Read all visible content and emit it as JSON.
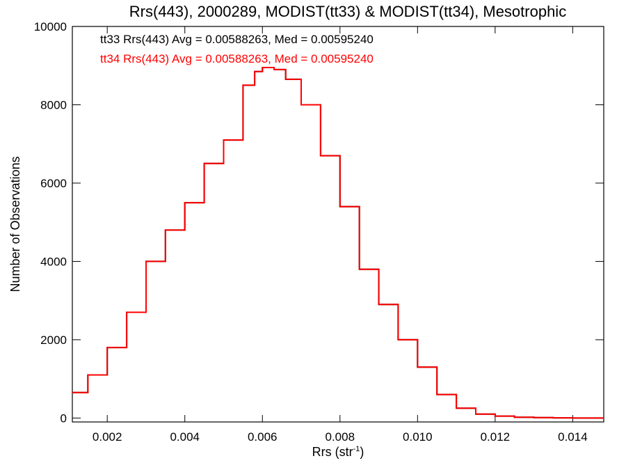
{
  "chart_data": {
    "type": "line",
    "title": "Rrs(443), 2000289, MODIST(tt33) & MODIST(tt34), Mesotrophic",
    "xlabel": "Rrs (str",
    "xlabel_sup": "-1",
    "xlabel_close": ")",
    "ylabel": "Number of Observations",
    "xlim": [
      0.0011,
      0.0148
    ],
    "ylim": [
      -100,
      10000
    ],
    "x_ticks": [
      0.002,
      0.004,
      0.006,
      0.008,
      0.01,
      0.012,
      0.014
    ],
    "x_tick_labels": [
      "0.002",
      "0.004",
      "0.006",
      "0.008",
      "0.010",
      "0.012",
      "0.014"
    ],
    "y_ticks": [
      0,
      2000,
      4000,
      6000,
      8000,
      10000
    ],
    "y_tick_labels": [
      "0",
      "2000",
      "4000",
      "6000",
      "8000",
      "10000"
    ],
    "grid": false,
    "annotations": [
      {
        "text": "tt33 Rrs(443) Avg = 0.00588263, Med = 0.00595240",
        "color": "#000000"
      },
      {
        "text": "tt34 Rrs(443) Avg = 0.00588263, Med = 0.00595240",
        "color": "#ff0000"
      }
    ],
    "series": [
      {
        "name": "tt33",
        "color": "#000000",
        "x": [
          0.0011,
          0.0015,
          0.002,
          0.0025,
          0.003,
          0.0035,
          0.004,
          0.0045,
          0.005,
          0.0055,
          0.0058,
          0.006,
          0.0063,
          0.0066,
          0.007,
          0.0075,
          0.008,
          0.0085,
          0.009,
          0.0095,
          0.01,
          0.0105,
          0.011,
          0.0115,
          0.012,
          0.0125,
          0.013,
          0.0135,
          0.014,
          0.0148
        ],
        "y": [
          650,
          1100,
          1800,
          2700,
          4000,
          4800,
          5500,
          6500,
          7100,
          8500,
          8850,
          8950,
          8900,
          8650,
          8000,
          6700,
          5400,
          3800,
          2900,
          2000,
          1300,
          600,
          250,
          100,
          50,
          20,
          10,
          5,
          0,
          0
        ]
      },
      {
        "name": "tt34",
        "color": "#ff0000",
        "x": [
          0.0011,
          0.0015,
          0.002,
          0.0025,
          0.003,
          0.0035,
          0.004,
          0.0045,
          0.005,
          0.0055,
          0.0058,
          0.006,
          0.0063,
          0.0066,
          0.007,
          0.0075,
          0.008,
          0.0085,
          0.009,
          0.0095,
          0.01,
          0.0105,
          0.011,
          0.0115,
          0.012,
          0.0125,
          0.013,
          0.0135,
          0.014,
          0.0148
        ],
        "y": [
          650,
          1100,
          1800,
          2700,
          4000,
          4800,
          5500,
          6500,
          7100,
          8500,
          8850,
          8950,
          8900,
          8650,
          8000,
          6700,
          5400,
          3800,
          2900,
          2000,
          1300,
          600,
          250,
          100,
          50,
          20,
          10,
          5,
          0,
          0
        ]
      }
    ]
  }
}
